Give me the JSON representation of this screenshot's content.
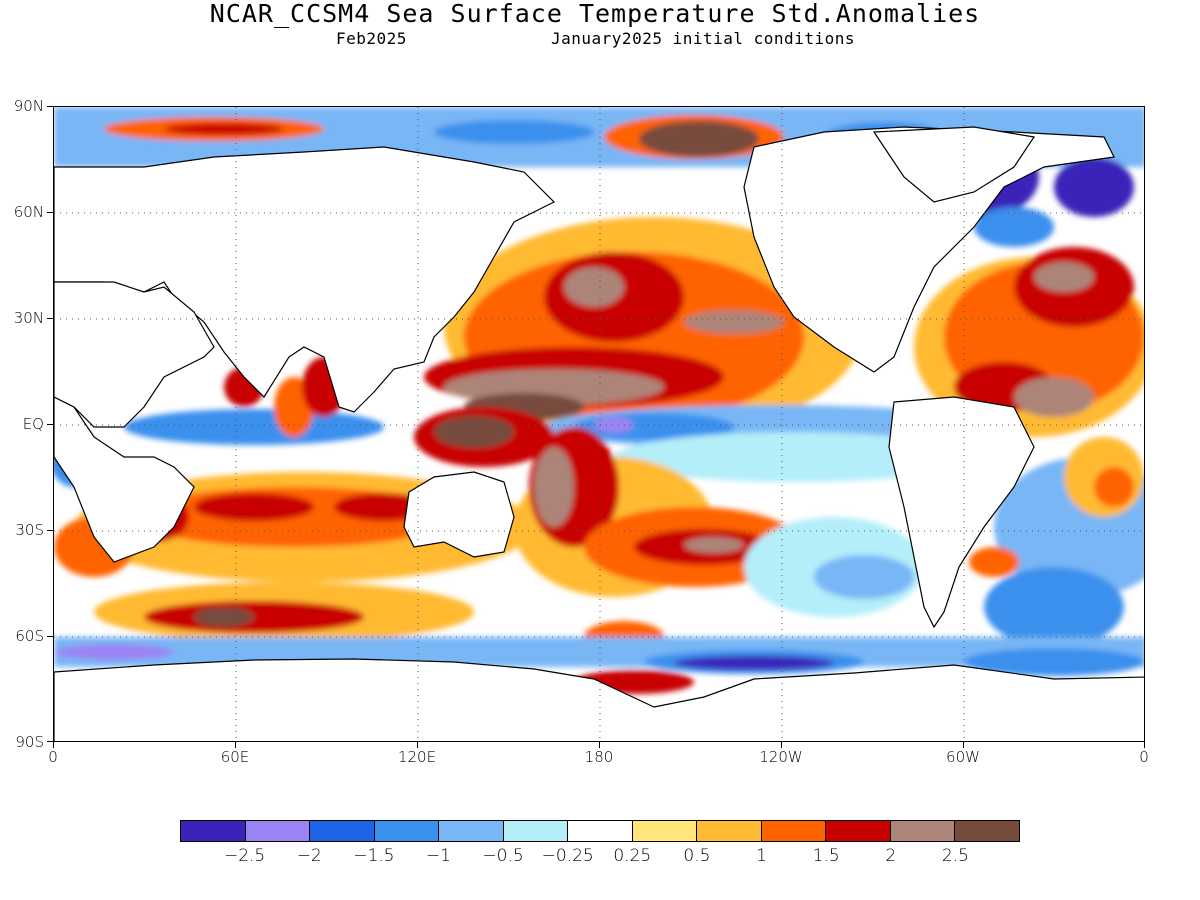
{
  "header": {
    "title": "NCAR_CCSM4 Sea Surface Temperature Std.Anomalies",
    "valid_month": "Feb2025",
    "initial_conditions": "January2025 initial conditions"
  },
  "map": {
    "latitude_labels": [
      "90N",
      "60N",
      "30N",
      "EQ",
      "30S",
      "60S",
      "90S"
    ],
    "longitude_labels": [
      "0",
      "60E",
      "120E",
      "180",
      "120W",
      "60W",
      "0"
    ],
    "projection": "equirectangular, 0 to 360 longitude",
    "grid": "dotted graticule every 30 degrees"
  },
  "colorbar": {
    "colors": [
      "#3b22b8",
      "#9b84f3",
      "#1f63e6",
      "#3a90ee",
      "#78b6f5",
      "#b4eef9",
      "#ffffff",
      "#ffe57a",
      "#ffba33",
      "#ff6300",
      "#c80000",
      "#ad8478",
      "#774b3e"
    ],
    "labels": [
      "−2.5",
      "−2",
      "−1.5",
      "−1",
      "−0.5",
      "−0.25",
      "0.25",
      "0.5",
      "1",
      "1.5",
      "2",
      "2.5"
    ]
  }
}
